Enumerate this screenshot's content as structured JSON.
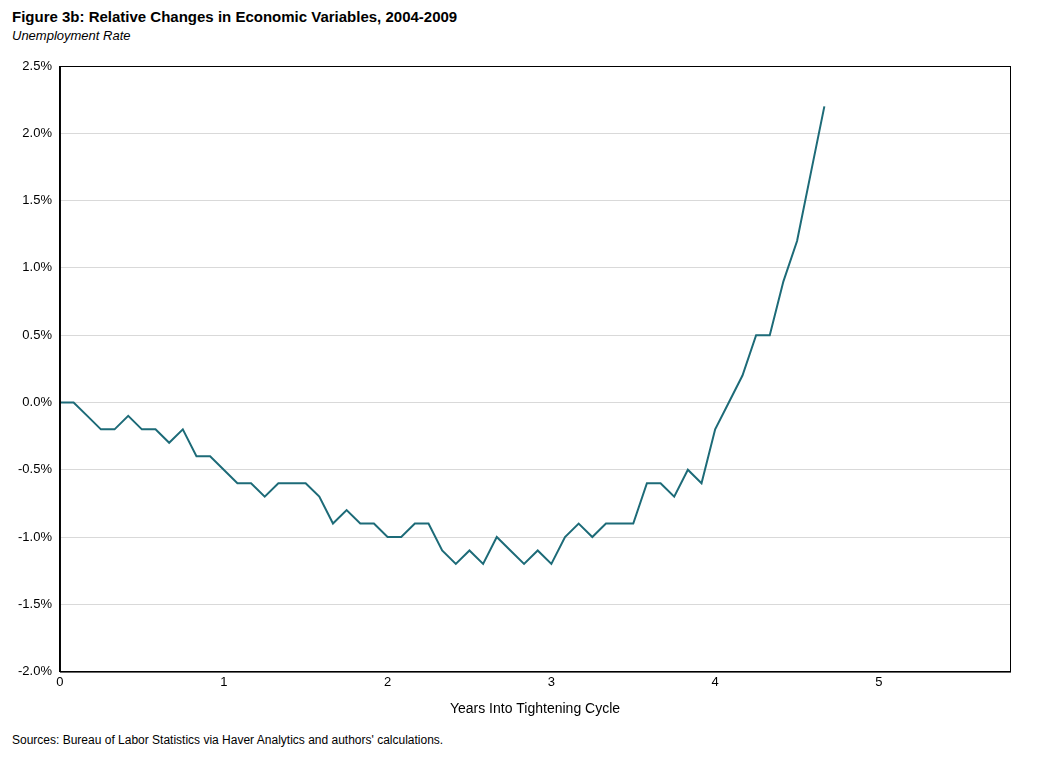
{
  "chart_data": {
    "type": "line",
    "title": "Figure 3b: Relative Changes in Economic Variables, 2004-2009",
    "subtitle": "Unemployment Rate",
    "x_label": "Years Into Tightening Cycle",
    "note": "Sources: Bureau of Labor Statistics via Haver Analytics and authors' calculations.",
    "x": [
      0,
      0.0833,
      0.1667,
      0.25,
      0.3333,
      0.4167,
      0.5,
      0.5833,
      0.6667,
      0.75,
      0.8333,
      0.9167,
      1,
      1.0833,
      1.1667,
      1.25,
      1.3333,
      1.4167,
      1.5,
      1.5833,
      1.6667,
      1.75,
      1.8333,
      1.9167,
      2,
      2.0833,
      2.1667,
      2.25,
      2.3333,
      2.4167,
      2.5,
      2.5833,
      2.6667,
      2.75,
      2.8333,
      2.9167,
      3,
      3.0833,
      3.1667,
      3.25,
      3.3333,
      3.4167,
      3.5,
      3.5833,
      3.6667,
      3.75,
      3.8333,
      3.9167,
      4,
      4.0833,
      4.1667,
      4.25,
      4.3333,
      4.4167,
      4.5,
      4.5833,
      4.6667
    ],
    "series": [
      {
        "name": "Unemployment Rate",
        "color": "#1d6b78",
        "values": [
          0.0,
          0.0,
          -0.1,
          -0.2,
          -0.2,
          -0.1,
          -0.2,
          -0.2,
          -0.3,
          -0.2,
          -0.4,
          -0.4,
          -0.5,
          -0.6,
          -0.6,
          -0.7,
          -0.6,
          -0.6,
          -0.6,
          -0.7,
          -0.9,
          -0.8,
          -0.9,
          -0.9,
          -1.0,
          -1.0,
          -0.9,
          -0.9,
          -1.1,
          -1.2,
          -1.1,
          -1.2,
          -1.0,
          -1.1,
          -1.2,
          -1.1,
          -1.2,
          -1.0,
          -0.9,
          -1.0,
          -0.9,
          -0.9,
          -0.9,
          -0.6,
          -0.6,
          -0.7,
          -0.5,
          -0.6,
          -0.2,
          0.0,
          0.2,
          0.5,
          0.5,
          0.9,
          1.2,
          1.7,
          2.2
        ]
      }
    ],
    "xlim": [
      0,
      5.8
    ],
    "xticks": [
      0,
      1,
      2,
      3,
      4,
      5
    ],
    "ylim": [
      -2.0,
      2.5
    ],
    "yticks": [
      {
        "value": -2.0,
        "label": "-2.0%"
      },
      {
        "value": -1.5,
        "label": "-1.5%"
      },
      {
        "value": -1.0,
        "label": "-1.0%"
      },
      {
        "value": -0.5,
        "label": "-0.5%"
      },
      {
        "value": 0.0,
        "label": "0.0%"
      },
      {
        "value": 0.5,
        "label": "0.5%"
      },
      {
        "value": 1.0,
        "label": "1.0%"
      },
      {
        "value": 1.5,
        "label": "1.5%"
      },
      {
        "value": 2.0,
        "label": "2.0%"
      },
      {
        "value": 2.5,
        "label": "2.5%"
      }
    ],
    "grid": "y"
  }
}
